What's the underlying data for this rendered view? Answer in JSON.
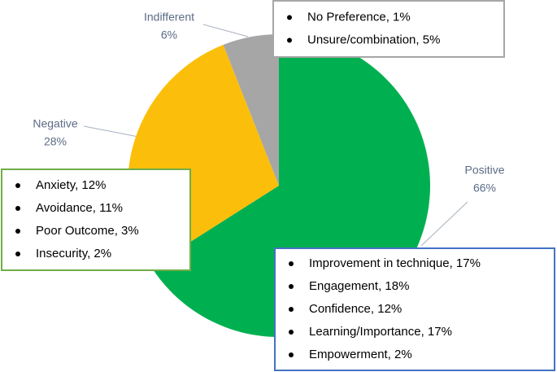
{
  "chart_data": {
    "type": "pie",
    "categories": [
      "Positive",
      "Negative",
      "Indifferent"
    ],
    "values": [
      66,
      28,
      6
    ],
    "value_labels": [
      "66%",
      "28%",
      "6%"
    ],
    "colors": [
      "#00b050",
      "#fbbf0b",
      "#a6a6a6"
    ],
    "annotations": [
      {
        "border_color": "#a6a6a6",
        "items": [
          "No Preference, 1%",
          "Unsure/combination, 5%"
        ]
      },
      {
        "border_color": "#70ad47",
        "items": [
          "Anxiety, 12%",
          "Avoidance, 11%",
          "Poor Outcome, 3%",
          "Insecurity, 2%"
        ]
      },
      {
        "border_color": "#4472c4",
        "items": [
          "Improvement in technique, 17%",
          "Engagement, 18%",
          "Confidence, 12%",
          "Learning/Importance, 17%",
          "Empowerment, 2%"
        ]
      }
    ]
  }
}
